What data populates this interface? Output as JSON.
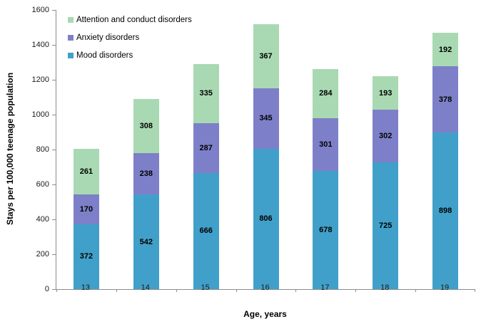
{
  "chart_data": {
    "type": "bar",
    "stacked": true,
    "title": "",
    "xlabel": "Age, years",
    "ylabel": "Stays per 100,000 teenage population",
    "categories": [
      "13",
      "14",
      "15",
      "16",
      "17",
      "18",
      "19"
    ],
    "series": [
      {
        "name": "Mood disorders",
        "color": "#41A0C9",
        "values": [
          372,
          542,
          666,
          806,
          678,
          725,
          898
        ]
      },
      {
        "name": "Anxiety disorders",
        "color": "#7D80C8",
        "values": [
          170,
          238,
          287,
          345,
          301,
          302,
          378
        ]
      },
      {
        "name": "Attention and conduct disorders",
        "color": "#A9D9B2",
        "values": [
          261,
          308,
          335,
          367,
          284,
          193,
          192
        ]
      }
    ],
    "totals": [
      803,
      1088,
      1288,
      1518,
      1263,
      1220,
      1468
    ],
    "legend": {
      "position": "top-left",
      "entries": [
        "Attention and conduct disorders",
        "Anxiety disorders",
        "Mood disorders"
      ]
    },
    "ylim": [
      0,
      1600
    ],
    "yticks": [
      0,
      200,
      400,
      600,
      800,
      1000,
      1200,
      1400,
      1600
    ],
    "grid": false,
    "axis_color": "#8c8c8c",
    "data_label_color": "#000000"
  }
}
